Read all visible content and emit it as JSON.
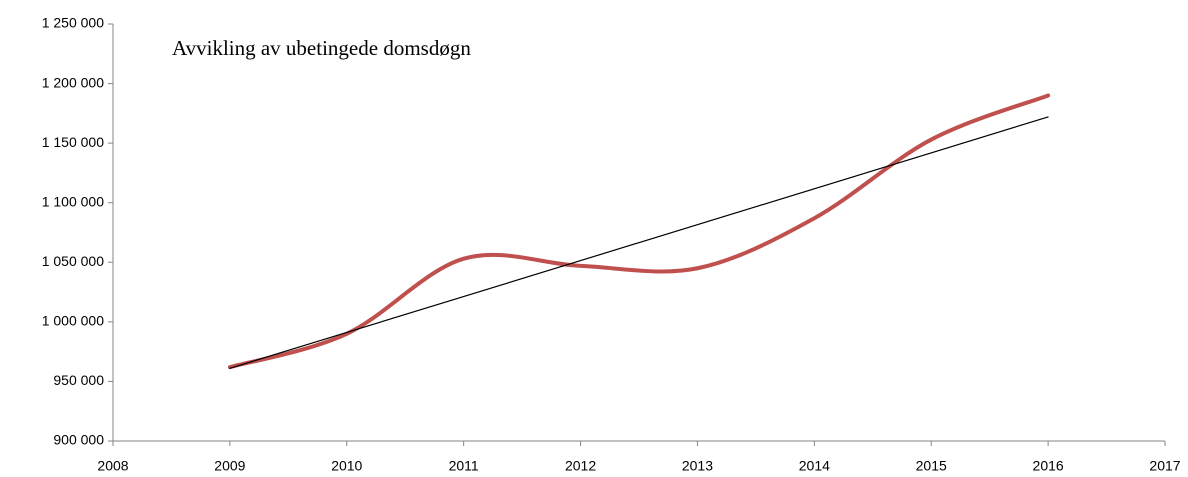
{
  "chart_data": {
    "type": "line",
    "title": "Avvikling av ubetingede domsdøgn",
    "series": [
      {
        "color": "#c0504d",
        "smooth": true,
        "width": 4,
        "x": [
          2009,
          2010,
          2011,
          2012,
          2013,
          2014,
          2015,
          2016
        ],
        "values": [
          962000,
          990000,
          1053000,
          1047000,
          1045000,
          1087000,
          1153000,
          1190000
        ]
      },
      {
        "color": "#000000",
        "smooth": false,
        "width": 1.2,
        "x": [
          2009,
          2016
        ],
        "values": [
          961000,
          1172000
        ]
      }
    ],
    "xlim": [
      2008,
      2017
    ],
    "xticks": [
      2008,
      2009,
      2010,
      2011,
      2012,
      2013,
      2014,
      2015,
      2016,
      2017
    ],
    "ylim": [
      900000,
      1250000
    ],
    "yticks": [
      {
        "value": 900000,
        "label": "900 000"
      },
      {
        "value": 950000,
        "label": "950 000"
      },
      {
        "value": 1000000,
        "label": "1 000 000"
      },
      {
        "value": 1050000,
        "label": "1 050 000"
      },
      {
        "value": 1100000,
        "label": "1 100 000"
      },
      {
        "value": 1150000,
        "label": "1 150 000"
      },
      {
        "value": 1200000,
        "label": "1 200 000"
      },
      {
        "value": 1250000,
        "label": "1 250 000"
      }
    ],
    "grid": false
  }
}
